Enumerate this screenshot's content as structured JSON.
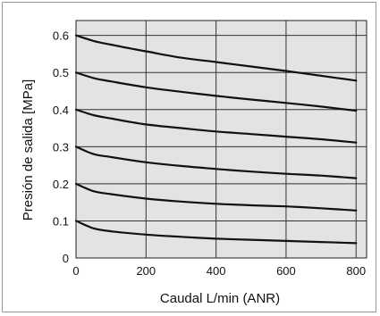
{
  "chart_data": {
    "type": "line",
    "title": "",
    "xlabel": "Caudal L/min (ANR)",
    "ylabel": "Presión de salida [MPa]",
    "xlim": [
      0,
      830
    ],
    "ylim": [
      0,
      0.64
    ],
    "x_ticks": [
      0,
      200,
      400,
      600,
      800
    ],
    "y_ticks": [
      0,
      0.1,
      0.2,
      0.3,
      0.4,
      0.5,
      0.6
    ],
    "x_tick_labels": [
      "0",
      "200",
      "400",
      "600",
      "800"
    ],
    "y_tick_labels": [
      "0",
      "0.1",
      "0.2",
      "0.3",
      "0.4",
      "0.5",
      "0.6"
    ],
    "grid": true,
    "plot_background": "#e3e3e3",
    "line_color": "#111111",
    "series": [
      {
        "x": [
          0,
          50,
          100,
          200,
          300,
          400,
          500,
          600,
          700,
          800
        ],
        "y": [
          0.1,
          0.08,
          0.072,
          0.063,
          0.057,
          0.052,
          0.049,
          0.046,
          0.043,
          0.04
        ]
      },
      {
        "x": [
          0,
          50,
          100,
          200,
          300,
          400,
          500,
          600,
          700,
          800
        ],
        "y": [
          0.2,
          0.18,
          0.172,
          0.16,
          0.152,
          0.146,
          0.142,
          0.139,
          0.134,
          0.128
        ]
      },
      {
        "x": [
          0,
          50,
          100,
          200,
          300,
          400,
          500,
          600,
          700,
          800
        ],
        "y": [
          0.3,
          0.28,
          0.272,
          0.258,
          0.248,
          0.24,
          0.233,
          0.227,
          0.222,
          0.215
        ]
      },
      {
        "x": [
          0,
          50,
          100,
          200,
          300,
          400,
          500,
          600,
          700,
          800
        ],
        "y": [
          0.4,
          0.385,
          0.376,
          0.36,
          0.35,
          0.341,
          0.334,
          0.327,
          0.32,
          0.311
        ]
      },
      {
        "x": [
          0,
          50,
          100,
          200,
          300,
          400,
          500,
          600,
          700,
          800
        ],
        "y": [
          0.5,
          0.485,
          0.476,
          0.46,
          0.448,
          0.437,
          0.427,
          0.418,
          0.408,
          0.397
        ]
      },
      {
        "x": [
          0,
          50,
          100,
          200,
          300,
          400,
          500,
          600,
          700,
          800
        ],
        "y": [
          0.6,
          0.585,
          0.575,
          0.557,
          0.54,
          0.528,
          0.516,
          0.504,
          0.491,
          0.478
        ]
      }
    ]
  }
}
